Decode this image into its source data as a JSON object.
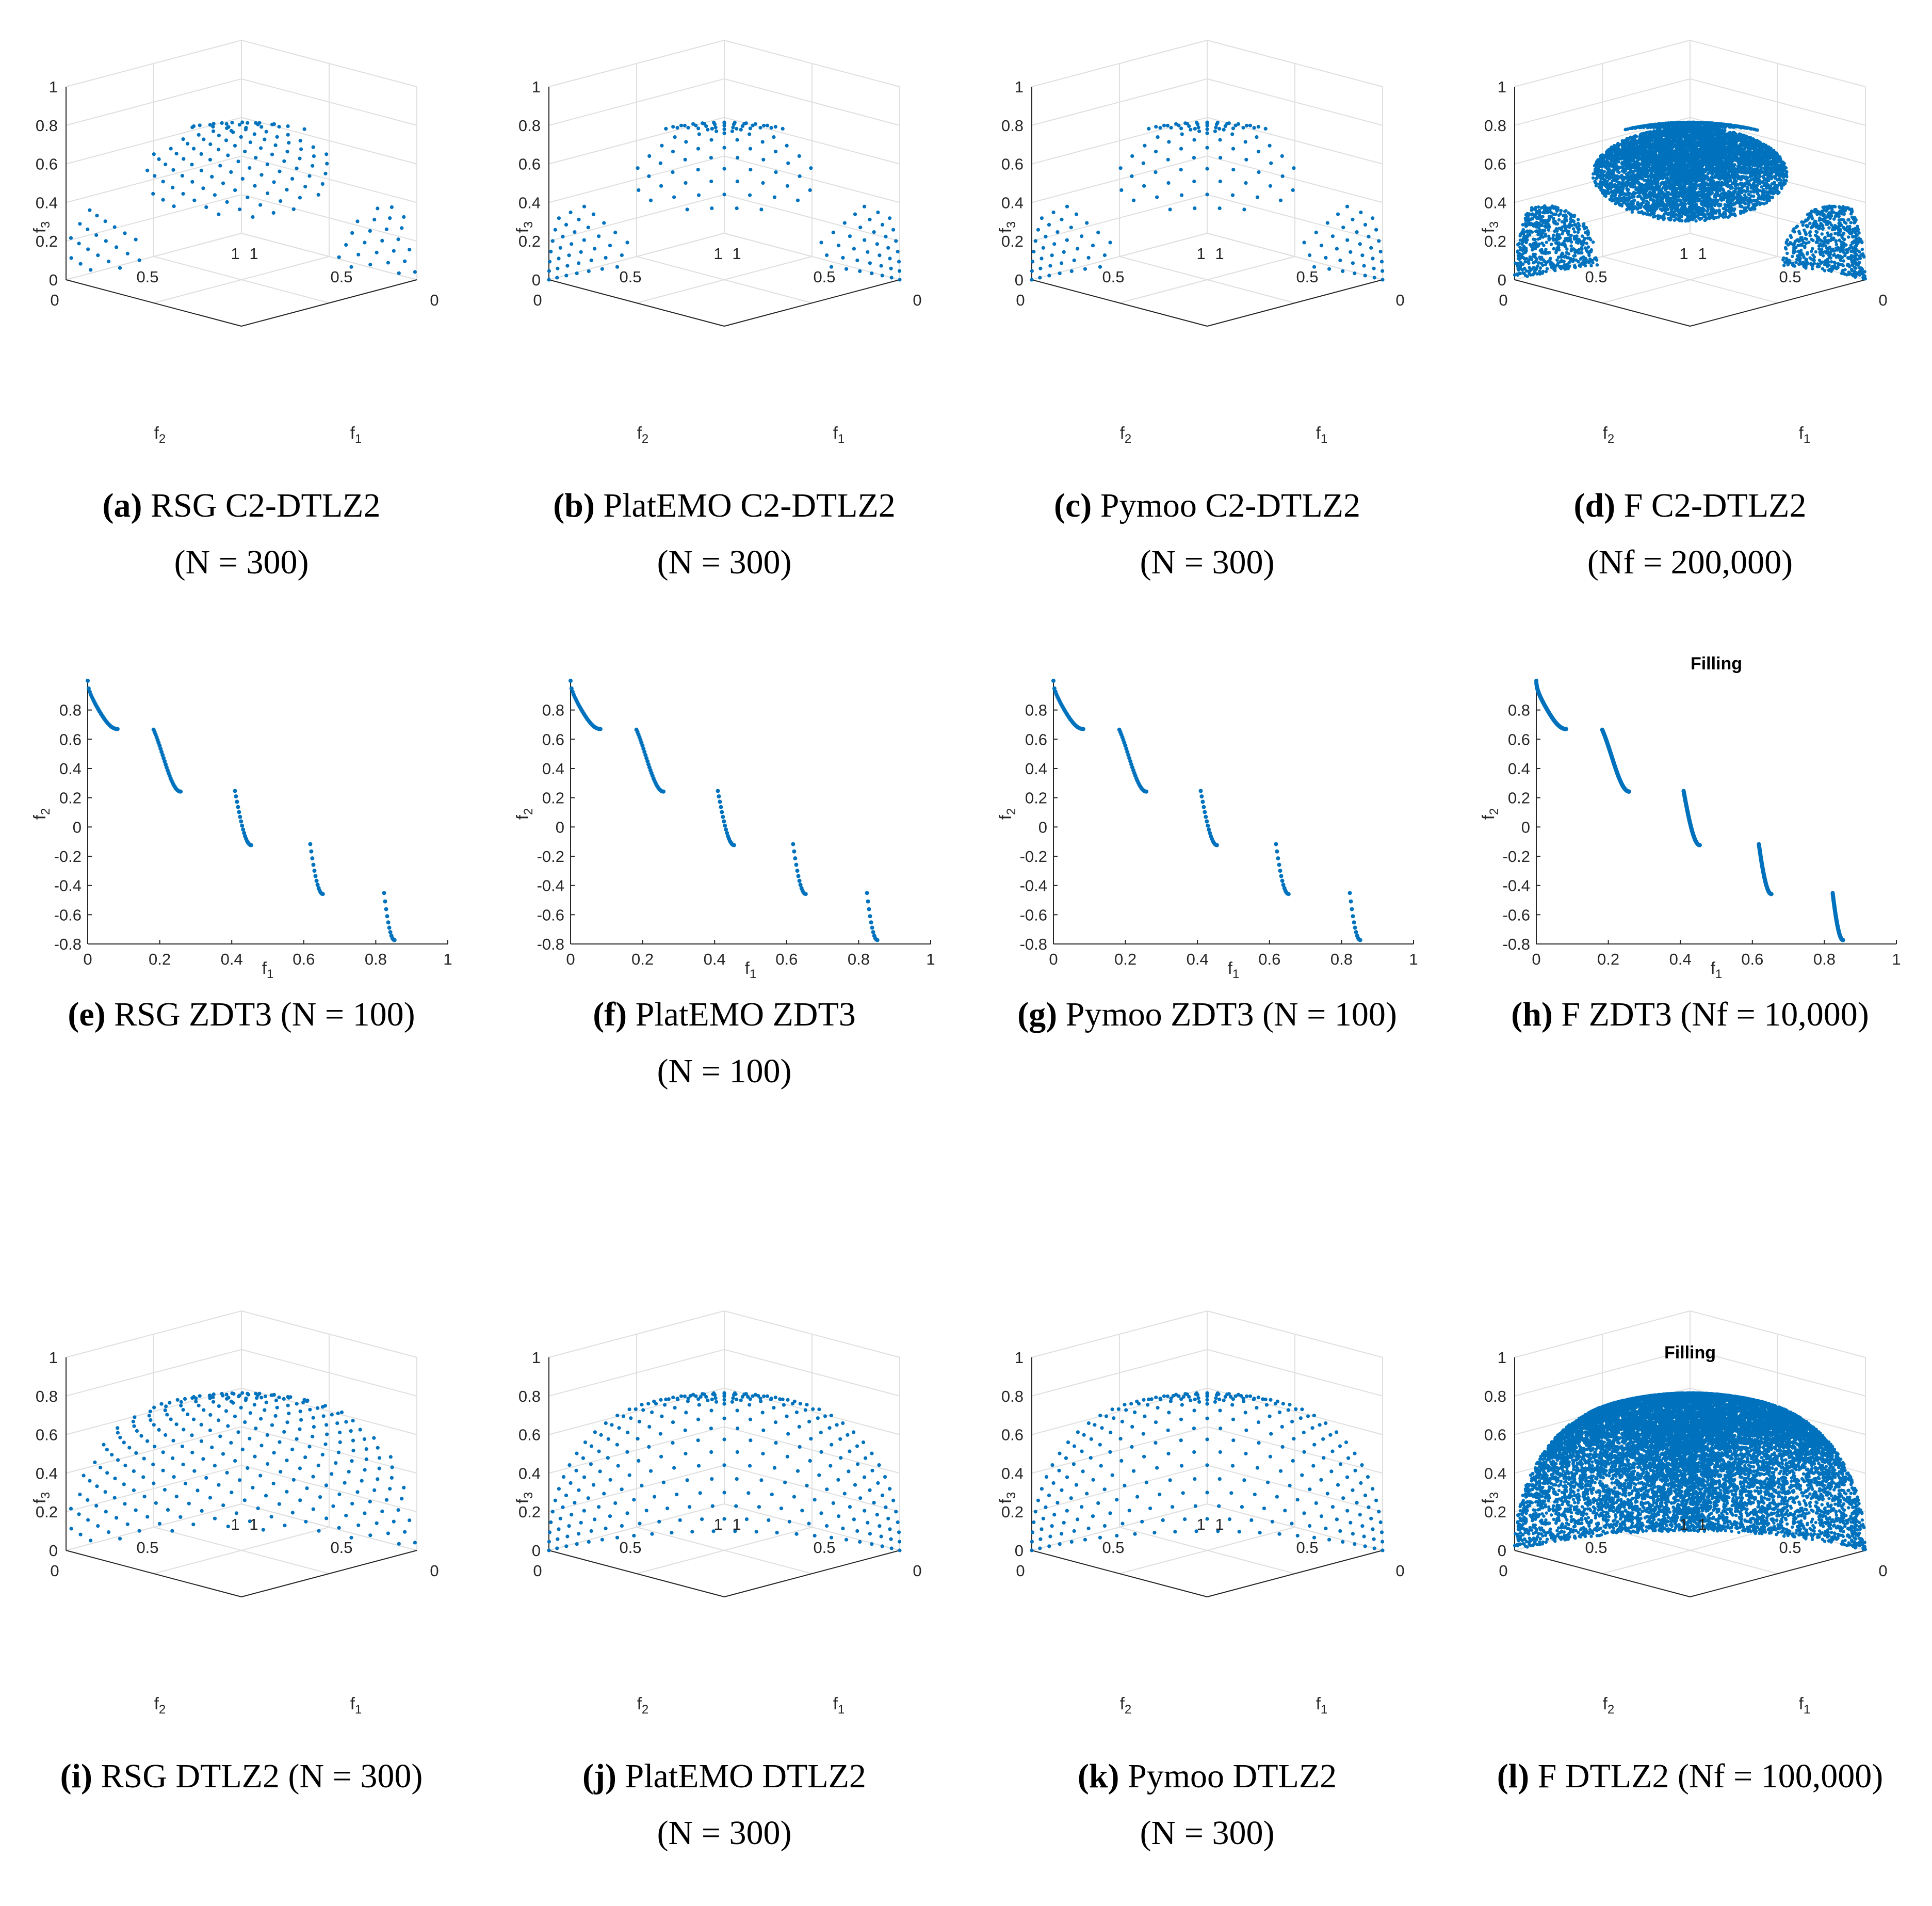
{
  "chart_data": [
    {
      "id": "a",
      "type": "scatter3d",
      "problem": "C2-DTLZ2",
      "method": "RSG",
      "generator": "rsg",
      "constraint": "c2",
      "n": 300,
      "title": "",
      "xlabel": "f1",
      "ylabel": "f2",
      "zlabel": "f3",
      "x_ticks": [
        "0",
        "0.5",
        "1"
      ],
      "y_ticks": [
        "0",
        "0.5",
        "1"
      ],
      "z_ticks": [
        "0",
        "0.2",
        "0.4",
        "0.6",
        "0.8",
        "1"
      ],
      "caption": {
        "tag": "a",
        "pre": "RSG C2-DTLZ2",
        "line2": "(N = 300)"
      }
    },
    {
      "id": "b",
      "type": "scatter3d",
      "problem": "C2-DTLZ2",
      "method": "PlatEMO",
      "generator": "lattice",
      "constraint": "c2",
      "n": 300,
      "title": "",
      "xlabel": "f1",
      "ylabel": "f2",
      "zlabel": "f3",
      "x_ticks": [
        "0",
        "0.5",
        "1"
      ],
      "y_ticks": [
        "0",
        "0.5",
        "1"
      ],
      "z_ticks": [
        "0",
        "0.2",
        "0.4",
        "0.6",
        "0.8",
        "1"
      ],
      "caption": {
        "tag": "b",
        "pre": "PlatEMO C2-DTLZ2",
        "line2": "(N = 300)"
      }
    },
    {
      "id": "c",
      "type": "scatter3d",
      "problem": "C2-DTLZ2",
      "method": "Pymoo",
      "generator": "lattice",
      "constraint": "c2",
      "n": 300,
      "title": "",
      "xlabel": "f1",
      "ylabel": "f2",
      "zlabel": "f3",
      "x_ticks": [
        "0",
        "0.5",
        "1"
      ],
      "y_ticks": [
        "0",
        "0.5",
        "1"
      ],
      "z_ticks": [
        "0",
        "0.2",
        "0.4",
        "0.6",
        "0.8",
        "1"
      ],
      "caption": {
        "tag": "c",
        "pre": "Pymoo C2-DTLZ2",
        "line2": "(N = 300)"
      }
    },
    {
      "id": "d",
      "type": "scatter3d",
      "problem": "C2-DTLZ2",
      "method": "F",
      "generator": "fill",
      "constraint": "c2",
      "n": 200000,
      "title": "",
      "xlabel": "f1",
      "ylabel": "f2",
      "zlabel": "f3",
      "x_ticks": [
        "0",
        "0.5",
        "1"
      ],
      "y_ticks": [
        "0",
        "0.5",
        "1"
      ],
      "z_ticks": [
        "0",
        "0.2",
        "0.4",
        "0.6",
        "0.8",
        "1"
      ],
      "caption": {
        "tag": "d",
        "pre": "F C2-DTLZ2",
        "line2": "(Nf = 200,000)"
      }
    },
    {
      "id": "e",
      "type": "scatter",
      "problem": "ZDT3",
      "method": "RSG",
      "n": 100,
      "title": "",
      "xlabel": "f1",
      "ylabel": "f2",
      "xlim": [
        0,
        1
      ],
      "ylim": [
        -0.8,
        1
      ],
      "x_ticks": [
        "0",
        "0.2",
        "0.4",
        "0.6",
        "0.8",
        "1"
      ],
      "y_ticks": [
        "-0.8",
        "-0.6",
        "-0.4",
        "-0.2",
        "0",
        "0.2",
        "0.4",
        "0.6",
        "0.8"
      ],
      "segments": [
        [
          0,
          0.083
        ],
        [
          0.183,
          0.258
        ],
        [
          0.409,
          0.454
        ],
        [
          0.618,
          0.653
        ],
        [
          0.823,
          0.852
        ]
      ],
      "caption": {
        "tag": "e",
        "pre": "RSG ZDT3 (N = 100)",
        "line2": ""
      }
    },
    {
      "id": "f",
      "type": "scatter",
      "problem": "ZDT3",
      "method": "PlatEMO",
      "n": 100,
      "title": "",
      "xlabel": "f1",
      "ylabel": "f2",
      "xlim": [
        0,
        1
      ],
      "ylim": [
        -0.8,
        1
      ],
      "x_ticks": [
        "0",
        "0.2",
        "0.4",
        "0.6",
        "0.8",
        "1"
      ],
      "y_ticks": [
        "-0.8",
        "-0.6",
        "-0.4",
        "-0.2",
        "0",
        "0.2",
        "0.4",
        "0.6",
        "0.8"
      ],
      "segments": [
        [
          0,
          0.083
        ],
        [
          0.183,
          0.258
        ],
        [
          0.409,
          0.454
        ],
        [
          0.618,
          0.653
        ],
        [
          0.823,
          0.852
        ]
      ],
      "caption": {
        "tag": "f",
        "pre": "PlatEMO ZDT3",
        "line2": "(N = 100)"
      }
    },
    {
      "id": "g",
      "type": "scatter",
      "problem": "ZDT3",
      "method": "Pymoo",
      "n": 100,
      "title": "",
      "xlabel": "f1",
      "ylabel": "f2",
      "xlim": [
        0,
        1
      ],
      "ylim": [
        -0.8,
        1
      ],
      "x_ticks": [
        "0",
        "0.2",
        "0.4",
        "0.6",
        "0.8",
        "1"
      ],
      "y_ticks": [
        "-0.8",
        "-0.6",
        "-0.4",
        "-0.2",
        "0",
        "0.2",
        "0.4",
        "0.6",
        "0.8"
      ],
      "segments": [
        [
          0,
          0.083
        ],
        [
          0.183,
          0.258
        ],
        [
          0.409,
          0.454
        ],
        [
          0.618,
          0.653
        ],
        [
          0.823,
          0.852
        ]
      ],
      "caption": {
        "tag": "g",
        "pre": "Pymoo ZDT3 (N = 100)",
        "line2": ""
      }
    },
    {
      "id": "h",
      "type": "scatter",
      "problem": "ZDT3",
      "method": "F",
      "n": 10000,
      "title": "Filling",
      "xlabel": "f1",
      "ylabel": "f2",
      "xlim": [
        0,
        1
      ],
      "ylim": [
        -0.8,
        1
      ],
      "x_ticks": [
        "0",
        "0.2",
        "0.4",
        "0.6",
        "0.8",
        "1"
      ],
      "y_ticks": [
        "-0.8",
        "-0.6",
        "-0.4",
        "-0.2",
        "0",
        "0.2",
        "0.4",
        "0.6",
        "0.8"
      ],
      "segments": [
        [
          0,
          0.083
        ],
        [
          0.183,
          0.258
        ],
        [
          0.409,
          0.454
        ],
        [
          0.618,
          0.653
        ],
        [
          0.823,
          0.852
        ]
      ],
      "caption": {
        "tag": "h",
        "pre": "F ZDT3 (Nf = 10,000)",
        "line2": ""
      }
    },
    {
      "id": "i",
      "type": "scatter3d",
      "problem": "DTLZ2",
      "method": "RSG",
      "generator": "rsg",
      "constraint": "none",
      "n": 300,
      "title": "",
      "xlabel": "f1",
      "ylabel": "f2",
      "zlabel": "f3",
      "x_ticks": [
        "0",
        "0.5",
        "1"
      ],
      "y_ticks": [
        "0",
        "0.5",
        "1"
      ],
      "z_ticks": [
        "0",
        "0.2",
        "0.4",
        "0.6",
        "0.8",
        "1"
      ],
      "caption": {
        "tag": "i",
        "pre": "RSG DTLZ2 (N = 300)",
        "line2": ""
      }
    },
    {
      "id": "j",
      "type": "scatter3d",
      "problem": "DTLZ2",
      "method": "PlatEMO",
      "generator": "lattice",
      "constraint": "none",
      "n": 300,
      "title": "",
      "xlabel": "f1",
      "ylabel": "f2",
      "zlabel": "f3",
      "x_ticks": [
        "0",
        "0.5",
        "1"
      ],
      "y_ticks": [
        "0",
        "0.5",
        "1"
      ],
      "z_ticks": [
        "0",
        "0.2",
        "0.4",
        "0.6",
        "0.8",
        "1"
      ],
      "caption": {
        "tag": "j",
        "pre": "PlatEMO DTLZ2",
        "line2": "(N = 300)"
      }
    },
    {
      "id": "k",
      "type": "scatter3d",
      "problem": "DTLZ2",
      "method": "Pymoo",
      "generator": "lattice",
      "constraint": "none",
      "n": 300,
      "title": "",
      "xlabel": "f1",
      "ylabel": "f2",
      "zlabel": "f3",
      "x_ticks": [
        "0",
        "0.5",
        "1"
      ],
      "y_ticks": [
        "0",
        "0.5",
        "1"
      ],
      "z_ticks": [
        "0",
        "0.2",
        "0.4",
        "0.6",
        "0.8",
        "1"
      ],
      "caption": {
        "tag": "k",
        "pre": "Pymoo DTLZ2",
        "line2": "(N = 300)"
      }
    },
    {
      "id": "l",
      "type": "scatter3d",
      "problem": "DTLZ2",
      "method": "F",
      "generator": "fill",
      "constraint": "none",
      "n": 100000,
      "title": "Filling",
      "xlabel": "f1",
      "ylabel": "f2",
      "zlabel": "f3",
      "x_ticks": [
        "0",
        "0.5",
        "1"
      ],
      "y_ticks": [
        "0",
        "0.5",
        "1"
      ],
      "z_ticks": [
        "0",
        "0.2",
        "0.4",
        "0.6",
        "0.8",
        "1"
      ],
      "caption": {
        "tag": "l",
        "pre": "F DTLZ2 (Nf = 100,000)",
        "line2": ""
      }
    }
  ],
  "colors": {
    "marker": "#0072BD",
    "axis": "#262626",
    "grid": "#DFDFDF"
  }
}
